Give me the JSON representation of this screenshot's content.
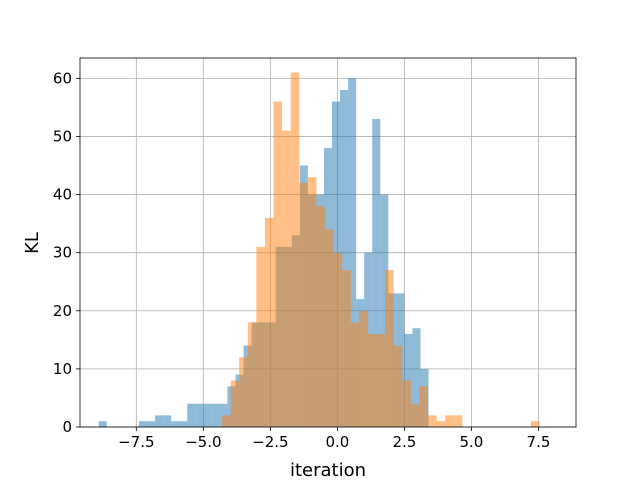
{
  "chart_data": {
    "type": "bar",
    "xlabel": "iteration",
    "ylabel": "KL",
    "xlim": [
      -9.6,
      8.9
    ],
    "ylim": [
      0,
      63.5
    ],
    "grid": true,
    "x_ticks": [
      -7.5,
      -5.0,
      -2.5,
      0.0,
      2.5,
      5.0,
      7.5
    ],
    "x_tick_labels": [
      "−7.5",
      "−5.0",
      "−2.5",
      "0.0",
      "2.5",
      "5.0",
      "7.5"
    ],
    "y_ticks": [
      0,
      10,
      20,
      30,
      40,
      50,
      60
    ],
    "y_tick_labels": [
      "0",
      "10",
      "20",
      "30",
      "40",
      "50",
      "60"
    ],
    "series": [
      {
        "color": "#1f77b4",
        "opacity": 0.5,
        "bin_edges": [
          -8.9,
          -8.6,
          -8.3,
          -8.0,
          -7.7,
          -7.4,
          -7.1,
          -6.8,
          -6.5,
          -6.2,
          -5.9,
          -5.6,
          -5.3,
          -5.0,
          -4.7,
          -4.4,
          -4.1,
          -3.8,
          -3.5,
          -3.2,
          -2.9,
          -2.6,
          -2.3,
          -2.0,
          -1.7,
          -1.4,
          -1.1,
          -0.8,
          -0.5,
          -0.2,
          0.1,
          0.4,
          0.7,
          1.0,
          1.3,
          1.6,
          1.9,
          2.2,
          2.5,
          2.8,
          3.1,
          3.4
        ],
        "counts": [
          1,
          0,
          0,
          0,
          0,
          1,
          1,
          2,
          2,
          1,
          1,
          4,
          4,
          4,
          4,
          4,
          7,
          9,
          14,
          18,
          18,
          18,
          31,
          31,
          33,
          45,
          40,
          40,
          48,
          56,
          58,
          60,
          22,
          30,
          53,
          40,
          23,
          23,
          16,
          17,
          10
        ]
      },
      {
        "color": "#ff7f0e",
        "opacity": 0.5,
        "bin_edges": [
          -4.3,
          -3.98,
          -3.66,
          -3.34,
          -3.02,
          -2.7,
          -2.38,
          -2.06,
          -1.74,
          -1.42,
          -1.1,
          -0.78,
          -0.46,
          -0.14,
          0.18,
          0.5,
          0.82,
          1.14,
          1.46,
          1.78,
          2.1,
          2.42,
          2.74,
          3.06,
          3.38,
          3.7,
          4.02,
          4.34,
          4.66,
          4.98,
          5.3,
          5.62,
          5.94,
          6.26,
          6.58,
          6.9,
          7.22,
          7.54,
          7.86
        ],
        "counts": [
          2,
          8,
          12,
          18,
          31,
          36,
          56,
          51,
          61,
          42,
          43,
          38,
          34,
          30,
          27,
          18,
          20,
          16,
          16,
          27,
          14,
          8,
          4,
          7,
          2,
          1,
          2,
          2,
          0,
          0,
          0,
          0,
          0,
          0,
          0,
          0,
          1,
          0
        ]
      }
    ]
  }
}
